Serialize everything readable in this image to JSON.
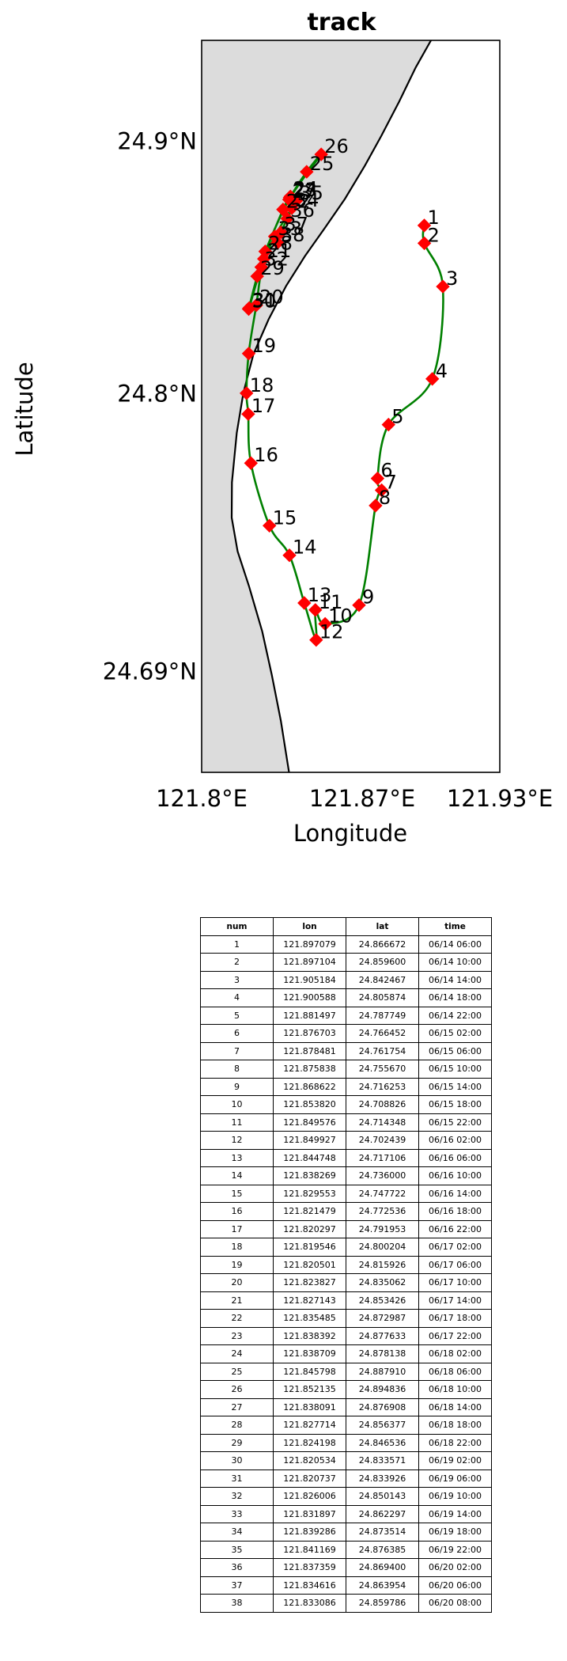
{
  "chart_data": {
    "type": "scatter",
    "title": "track",
    "xlabel": "Longitude",
    "ylabel": "Latitude",
    "xlim": [
      121.8,
      121.93
    ],
    "ylim": [
      24.65,
      24.94
    ],
    "x_ticks": [
      121.8,
      121.87,
      121.93
    ],
    "x_tick_labels": [
      "121.8°E",
      "121.87°E",
      "121.93°E"
    ],
    "y_ticks": [
      24.69,
      24.8,
      24.9
    ],
    "y_tick_labels": [
      "24.69°N",
      "24.8°N",
      "24.9°N"
    ],
    "grid": false,
    "colors": {
      "track_line": "#008000",
      "marker": "#ff0000",
      "land": "#dcdcdc",
      "coast": "#000000"
    },
    "coastline": {
      "lon": [
        121.8,
        121.8,
        121.8188,
        121.8307,
        121.8435,
        121.8543,
        121.8646,
        121.8764,
        121.8833,
        121.8894,
        121.8937,
        121.8956,
        121.8984,
        121.9,
        121.8933,
        121.8861,
        121.8783,
        121.8712,
        121.8624,
        121.8536,
        121.8451,
        121.8369,
        121.8292,
        121.8226,
        121.8182,
        121.8153,
        121.8132,
        121.8131,
        121.8157,
        121.8207,
        121.8264,
        121.8306,
        121.8345,
        121.8381
      ],
      "lat": [
        24.65,
        24.94,
        24.94,
        24.94,
        24.94,
        24.94,
        24.94,
        24.94,
        24.94,
        24.94,
        24.94,
        24.94,
        24.94,
        24.94,
        24.9292,
        24.9157,
        24.9021,
        24.8904,
        24.8771,
        24.8655,
        24.8546,
        24.8428,
        24.8295,
        24.8157,
        24.8004,
        24.7845,
        24.7649,
        24.7509,
        24.7375,
        24.7236,
        24.7058,
        24.6886,
        24.6705,
        24.65
      ]
    },
    "series": [
      {
        "num": [
          1,
          2,
          3,
          4,
          5,
          6,
          7,
          8,
          9,
          10,
          11,
          12,
          13,
          14,
          15,
          16,
          17,
          18,
          19,
          20,
          21,
          22,
          23,
          24,
          25,
          26,
          27,
          28,
          29,
          30,
          31,
          32,
          33,
          34,
          35,
          36,
          37,
          38
        ],
        "lon": [
          121.897079,
          121.897104,
          121.905184,
          121.900588,
          121.881497,
          121.876703,
          121.878481,
          121.875838,
          121.868622,
          121.85382,
          121.849576,
          121.849927,
          121.844748,
          121.838269,
          121.829553,
          121.821479,
          121.820297,
          121.819546,
          121.820501,
          121.823827,
          121.827143,
          121.835485,
          121.838392,
          121.838709,
          121.845798,
          121.852135,
          121.838091,
          121.827714,
          121.824198,
          121.820534,
          121.820737,
          121.826006,
          121.831897,
          121.839286,
          121.841169,
          121.837359,
          121.834616,
          121.833086
        ],
        "lat": [
          24.866672,
          24.8596,
          24.842467,
          24.805874,
          24.787749,
          24.766452,
          24.761754,
          24.75567,
          24.716253,
          24.708826,
          24.714348,
          24.702439,
          24.717106,
          24.736,
          24.747722,
          24.772536,
          24.791953,
          24.800204,
          24.815926,
          24.835062,
          24.853426,
          24.872987,
          24.877633,
          24.878138,
          24.88791,
          24.894836,
          24.876908,
          24.856377,
          24.846536,
          24.833571,
          24.833926,
          24.850143,
          24.862297,
          24.873514,
          24.876385,
          24.8694,
          24.863954,
          24.859786
        ]
      }
    ],
    "table": {
      "columns": [
        "num",
        "lon",
        "lat",
        "time"
      ],
      "rows": [
        [
          "1",
          "121.897079",
          "24.866672",
          "06/14 06:00"
        ],
        [
          "2",
          "121.897104",
          "24.859600",
          "06/14 10:00"
        ],
        [
          "3",
          "121.905184",
          "24.842467",
          "06/14 14:00"
        ],
        [
          "4",
          "121.900588",
          "24.805874",
          "06/14 18:00"
        ],
        [
          "5",
          "121.881497",
          "24.787749",
          "06/14 22:00"
        ],
        [
          "6",
          "121.876703",
          "24.766452",
          "06/15 02:00"
        ],
        [
          "7",
          "121.878481",
          "24.761754",
          "06/15 06:00"
        ],
        [
          "8",
          "121.875838",
          "24.755670",
          "06/15 10:00"
        ],
        [
          "9",
          "121.868622",
          "24.716253",
          "06/15 14:00"
        ],
        [
          "10",
          "121.853820",
          "24.708826",
          "06/15 18:00"
        ],
        [
          "11",
          "121.849576",
          "24.714348",
          "06/15 22:00"
        ],
        [
          "12",
          "121.849927",
          "24.702439",
          "06/16 02:00"
        ],
        [
          "13",
          "121.844748",
          "24.717106",
          "06/16 06:00"
        ],
        [
          "14",
          "121.838269",
          "24.736000",
          "06/16 10:00"
        ],
        [
          "15",
          "121.829553",
          "24.747722",
          "06/16 14:00"
        ],
        [
          "16",
          "121.821479",
          "24.772536",
          "06/16 18:00"
        ],
        [
          "17",
          "121.820297",
          "24.791953",
          "06/16 22:00"
        ],
        [
          "18",
          "121.819546",
          "24.800204",
          "06/17 02:00"
        ],
        [
          "19",
          "121.820501",
          "24.815926",
          "06/17 06:00"
        ],
        [
          "20",
          "121.823827",
          "24.835062",
          "06/17 10:00"
        ],
        [
          "21",
          "121.827143",
          "24.853426",
          "06/17 14:00"
        ],
        [
          "22",
          "121.835485",
          "24.872987",
          "06/17 18:00"
        ],
        [
          "23",
          "121.838392",
          "24.877633",
          "06/17 22:00"
        ],
        [
          "24",
          "121.838709",
          "24.878138",
          "06/18 02:00"
        ],
        [
          "25",
          "121.845798",
          "24.887910",
          "06/18 06:00"
        ],
        [
          "26",
          "121.852135",
          "24.894836",
          "06/18 10:00"
        ],
        [
          "27",
          "121.838091",
          "24.876908",
          "06/18 14:00"
        ],
        [
          "28",
          "121.827714",
          "24.856377",
          "06/18 18:00"
        ],
        [
          "29",
          "121.824198",
          "24.846536",
          "06/18 22:00"
        ],
        [
          "30",
          "121.820534",
          "24.833571",
          "06/19 02:00"
        ],
        [
          "31",
          "121.820737",
          "24.833926",
          "06/19 06:00"
        ],
        [
          "32",
          "121.826006",
          "24.850143",
          "06/19 10:00"
        ],
        [
          "33",
          "121.831897",
          "24.862297",
          "06/19 14:00"
        ],
        [
          "34",
          "121.839286",
          "24.873514",
          "06/19 18:00"
        ],
        [
          "35",
          "121.841169",
          "24.876385",
          "06/19 22:00"
        ],
        [
          "36",
          "121.837359",
          "24.869400",
          "06/20 02:00"
        ],
        [
          "37",
          "121.834616",
          "24.863954",
          "06/20 06:00"
        ],
        [
          "38",
          "121.833086",
          "24.859786",
          "06/20 08:00"
        ]
      ]
    }
  }
}
